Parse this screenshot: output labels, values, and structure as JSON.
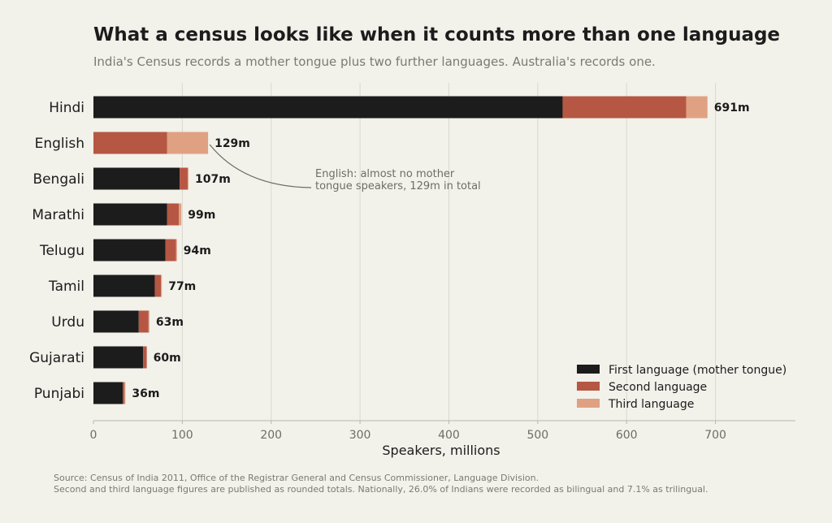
{
  "title": "What a census looks like when it counts more than one language",
  "subtitle": "India's Census records a mother tongue plus two further languages. Australia's records one.",
  "source_lines": [
    "Source: Census of India 2011, Office of the Registrar General and Census Commissioner, Language Division.",
    "Second and third language figures are published as rounded totals. Nationally, 26.0% of Indians were recorded as bilingual and 7.1% as trilingual."
  ],
  "colors": {
    "first": "#1c1c1c",
    "second": "#b55743",
    "third": "#e0a183",
    "grid": "#d9d8d0",
    "background": "#f2f1ea"
  },
  "chart_data": {
    "type": "bar",
    "orientation": "horizontal",
    "stacked": true,
    "categories": [
      "Hindi",
      "English",
      "Bengali",
      "Marathi",
      "Telugu",
      "Tamil",
      "Urdu",
      "Gujarati",
      "Punjabi"
    ],
    "series": [
      {
        "name": "First language (mother tongue)",
        "values": [
          528,
          0,
          97,
          83,
          81,
          69,
          51,
          56,
          33
        ]
      },
      {
        "name": "Second language",
        "values": [
          139,
          83,
          9,
          13,
          12,
          7,
          11,
          4,
          2
        ]
      },
      {
        "name": "Third language",
        "values": [
          24,
          46,
          1,
          3,
          1,
          1,
          1,
          0,
          1
        ]
      }
    ],
    "total_labels": [
      "691m",
      "129m",
      "107m",
      "99m",
      "94m",
      "77m",
      "63m",
      "60m",
      "36m"
    ],
    "xlabel": "Speakers, millions",
    "ylabel": "",
    "xlim": [
      0,
      790
    ],
    "xticks": [
      0,
      100,
      200,
      300,
      400,
      500,
      600,
      700
    ],
    "grid": "vertical",
    "legend_position": "bottom-right",
    "annotation": {
      "category": "English",
      "lines": [
        "English: almost no mother",
        "tongue speakers, 129m in total"
      ]
    }
  }
}
